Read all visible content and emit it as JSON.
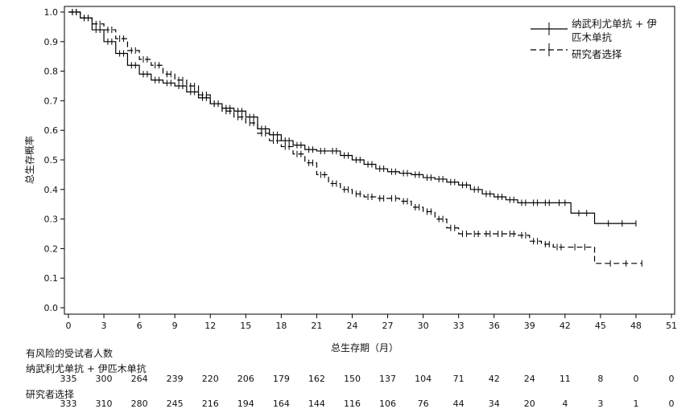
{
  "chart_data": {
    "type": "line",
    "subtype": "kaplan-meier",
    "title": "",
    "xlabel": "总生存期（月）",
    "ylabel": "总生存概率",
    "xlim": [
      0,
      51
    ],
    "ylim": [
      0,
      1.0
    ],
    "xticks": [
      0,
      3,
      6,
      9,
      12,
      15,
      18,
      21,
      24,
      27,
      30,
      33,
      36,
      39,
      42,
      45,
      48,
      51
    ],
    "yticks": [
      "0.0",
      "0.1",
      "0.2",
      "0.3",
      "0.4",
      "0.5",
      "0.6",
      "0.7",
      "0.8",
      "0.9",
      "1.0"
    ],
    "grid": false,
    "legend_position": "top-right",
    "series": [
      {
        "name": "纳武利尤单抗 + 伊匹木单抗",
        "line_style": "solid",
        "x": [
          0,
          1,
          2,
          3,
          4,
          5,
          6,
          7,
          8,
          9,
          10,
          11,
          12,
          13,
          14,
          15,
          16,
          17,
          18,
          19,
          20,
          21,
          22,
          23,
          24,
          25,
          26,
          27,
          28,
          29,
          30,
          31,
          32,
          33,
          34,
          35,
          36,
          37,
          38,
          39,
          40,
          41,
          42.5,
          44.5,
          48
        ],
        "y": [
          1.0,
          0.98,
          0.94,
          0.9,
          0.86,
          0.82,
          0.79,
          0.77,
          0.76,
          0.75,
          0.73,
          0.71,
          0.69,
          0.675,
          0.665,
          0.645,
          0.605,
          0.585,
          0.565,
          0.55,
          0.535,
          0.53,
          0.53,
          0.515,
          0.5,
          0.485,
          0.47,
          0.46,
          0.455,
          0.45,
          0.44,
          0.435,
          0.425,
          0.415,
          0.4,
          0.385,
          0.375,
          0.365,
          0.355,
          0.355,
          0.355,
          0.355,
          0.32,
          0.285,
          0.285
        ]
      },
      {
        "name": "研究者选择",
        "line_style": "dashed",
        "x": [
          0,
          1,
          2,
          3,
          4,
          5,
          6,
          7,
          8,
          9,
          10,
          11,
          12,
          13,
          14,
          15,
          16,
          17,
          18,
          19,
          20,
          21,
          22,
          23,
          24,
          25,
          26,
          27,
          28,
          29,
          30,
          31,
          32,
          33,
          34,
          35,
          36,
          37,
          38,
          39,
          40,
          41,
          42,
          44.5,
          48.5
        ],
        "y": [
          1.0,
          0.98,
          0.96,
          0.94,
          0.91,
          0.87,
          0.84,
          0.82,
          0.79,
          0.77,
          0.75,
          0.72,
          0.69,
          0.665,
          0.645,
          0.625,
          0.59,
          0.565,
          0.545,
          0.52,
          0.49,
          0.45,
          0.42,
          0.4,
          0.385,
          0.375,
          0.37,
          0.37,
          0.36,
          0.34,
          0.325,
          0.3,
          0.27,
          0.25,
          0.25,
          0.25,
          0.25,
          0.25,
          0.245,
          0.225,
          0.215,
          0.205,
          0.205,
          0.15,
          0.15
        ]
      }
    ],
    "risk_table": {
      "title": "有风险的受试者人数",
      "times": [
        0,
        3,
        6,
        9,
        12,
        15,
        18,
        21,
        24,
        27,
        30,
        33,
        36,
        39,
        42,
        45,
        48,
        51
      ],
      "rows": [
        {
          "name": "纳武利尤单抗 + 伊匹木单抗",
          "counts": [
            "335",
            "300",
            "264",
            "239",
            "220",
            "206",
            "179",
            "162",
            "150",
            "137",
            "104",
            "71",
            "42",
            "24",
            "11",
            "8",
            "0",
            "0"
          ]
        },
        {
          "name": "研究者选择",
          "counts": [
            "333",
            "310",
            "280",
            "245",
            "216",
            "194",
            "164",
            "144",
            "116",
            "106",
            "76",
            "44",
            "34",
            "20",
            "4",
            "3",
            "1",
            "0"
          ]
        }
      ]
    }
  }
}
